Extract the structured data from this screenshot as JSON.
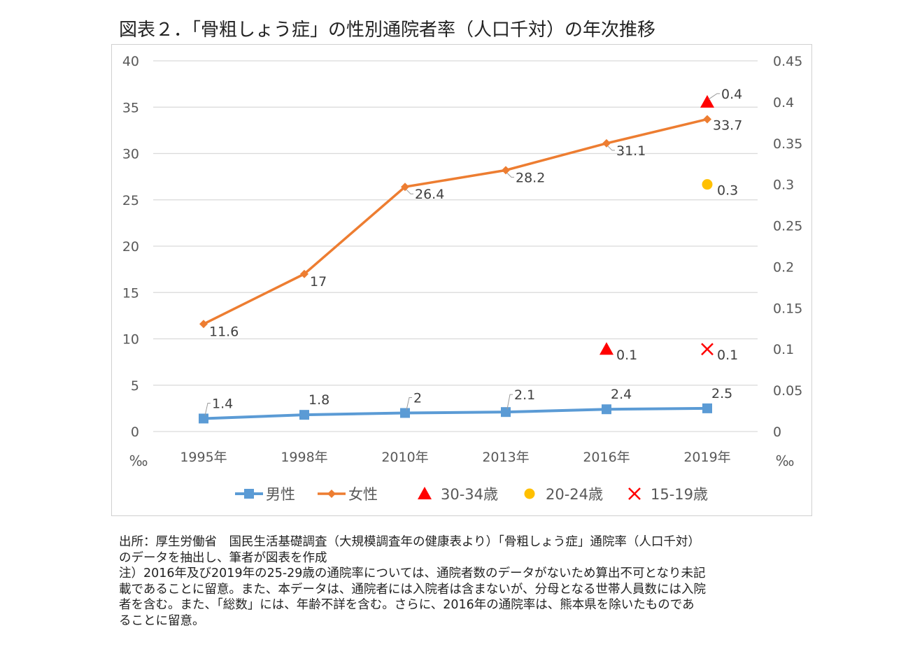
{
  "title": "図表２．「骨粗しょう症」の性別通院者率（人口千対）の年次推移",
  "chart_data": {
    "type": "line",
    "categories": [
      "1995年",
      "1998年",
      "2010年",
      "2013年",
      "2016年",
      "2019年"
    ],
    "y_left": {
      "range": [
        0,
        40
      ],
      "ticks": [
        "0",
        "5",
        "10",
        "15",
        "20",
        "25",
        "30",
        "35",
        "40"
      ],
      "unit": "‰"
    },
    "y_right": {
      "range": [
        0,
        0.45
      ],
      "ticks": [
        "0",
        "0.05",
        "0.1",
        "0.15",
        "0.2",
        "0.25",
        "0.3",
        "0.35",
        "0.4",
        "0.45"
      ],
      "unit": "‰"
    },
    "grid": true,
    "legend_position": "bottom",
    "series": [
      {
        "name": "男性",
        "axis": "left",
        "color": "#5b9bd5",
        "marker": "square",
        "values": [
          1.4,
          1.8,
          2,
          2.1,
          2.4,
          2.5
        ],
        "labels": [
          "1.4",
          "1.8",
          "2",
          "2.1",
          "2.4",
          "2.5"
        ]
      },
      {
        "name": "女性",
        "axis": "left",
        "color": "#ed7d31",
        "marker": "diamond",
        "values": [
          11.6,
          17,
          26.4,
          28.2,
          31.1,
          33.7
        ],
        "labels": [
          "11.6",
          "17",
          "26.4",
          "28.2",
          "31.1",
          "33.7"
        ]
      },
      {
        "name": "30-34歳",
        "axis": "right",
        "color": "#ff0000",
        "marker": "triangle",
        "values": [
          null,
          null,
          null,
          null,
          0.1,
          0.4
        ],
        "labels": [
          null,
          null,
          null,
          null,
          "0.1",
          "0.4"
        ]
      },
      {
        "name": "20-24歳",
        "axis": "right",
        "color": "#ffc000",
        "marker": "circle",
        "values": [
          null,
          null,
          null,
          null,
          null,
          0.3
        ],
        "labels": [
          null,
          null,
          null,
          null,
          null,
          "0.3"
        ]
      },
      {
        "name": "15-19歳",
        "axis": "right",
        "color": "#ff0000",
        "marker": "x",
        "values": [
          null,
          null,
          null,
          null,
          null,
          0.1
        ],
        "labels": [
          null,
          null,
          null,
          null,
          null,
          "0.1"
        ]
      }
    ]
  },
  "source": {
    "lines": [
      "出所：厚生労働省　国民生活基礎調査（大規模調査年の健康表より）「骨粗しょう症」通院率（人口千対）",
      "のデータを抽出し、筆者が図表を作成",
      "注）2016年及び2019年の25-29歳の通院率については、通院者数のデータがないため算出不可となり未記",
      "載であることに留意。また、本データは、通院者には入院者は含まないが、分母となる世帯人員数には入院",
      "者を含む。また、「総数」には、年齢不詳を含む。さらに、2016年の通院率は、熊本県を除いたものであ",
      "ることに留意。"
    ]
  }
}
